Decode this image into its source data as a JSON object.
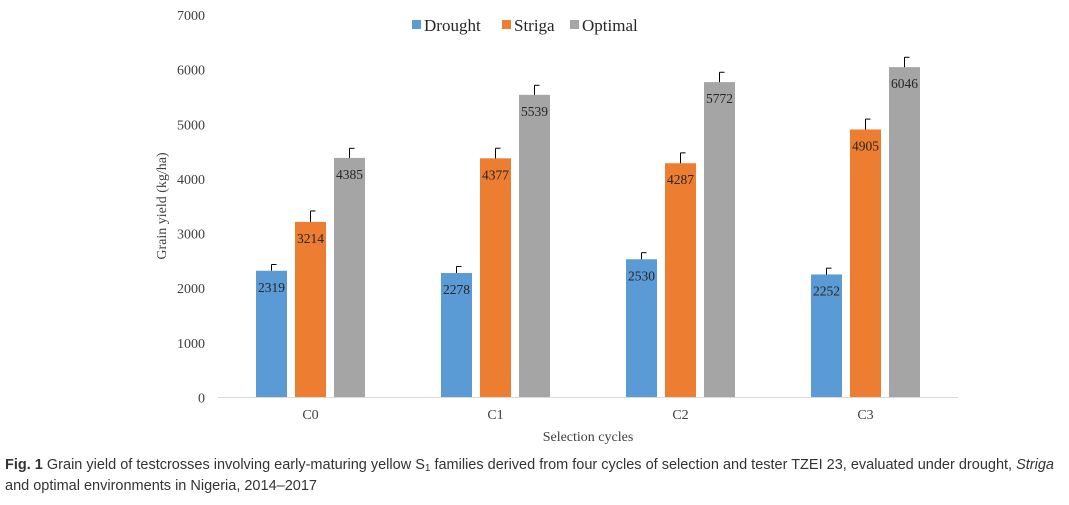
{
  "chart_data": {
    "type": "bar",
    "categories": [
      "C0",
      "C1",
      "C2",
      "C3"
    ],
    "series": [
      {
        "name": "Drought",
        "color": "#5b9bd5",
        "values": [
          2319,
          2278,
          2530,
          2252
        ],
        "error": [
          115,
          120,
          120,
          115
        ]
      },
      {
        "name": "Striga",
        "color": "#ed7d31",
        "values": [
          3214,
          4377,
          4287,
          4905
        ],
        "error": [
          200,
          185,
          190,
          190
        ]
      },
      {
        "name": "Optimal",
        "color": "#a5a5a5",
        "values": [
          4385,
          5539,
          5772,
          6046
        ],
        "error": [
          175,
          175,
          180,
          180
        ]
      }
    ],
    "xlabel": "Selection cycles",
    "ylabel": "Grain yield (kg/ha)",
    "ylim": [
      0,
      7000
    ],
    "yticks": [
      "0",
      "1000",
      "2000",
      "3000",
      "4000",
      "5000",
      "6000",
      "7000"
    ],
    "grid": false,
    "legend": "top-center"
  },
  "caption": {
    "label": "Fig. 1",
    "text_1": " Grain yield of testcrosses involving early-maturing yellow S",
    "subscript": "1",
    "text_2": " families derived from four cycles of selection and tester TZEI 23, evaluated under drought, ",
    "italic": "Striga",
    "text_3": " and optimal environments in Nigeria, 2014–2017"
  }
}
